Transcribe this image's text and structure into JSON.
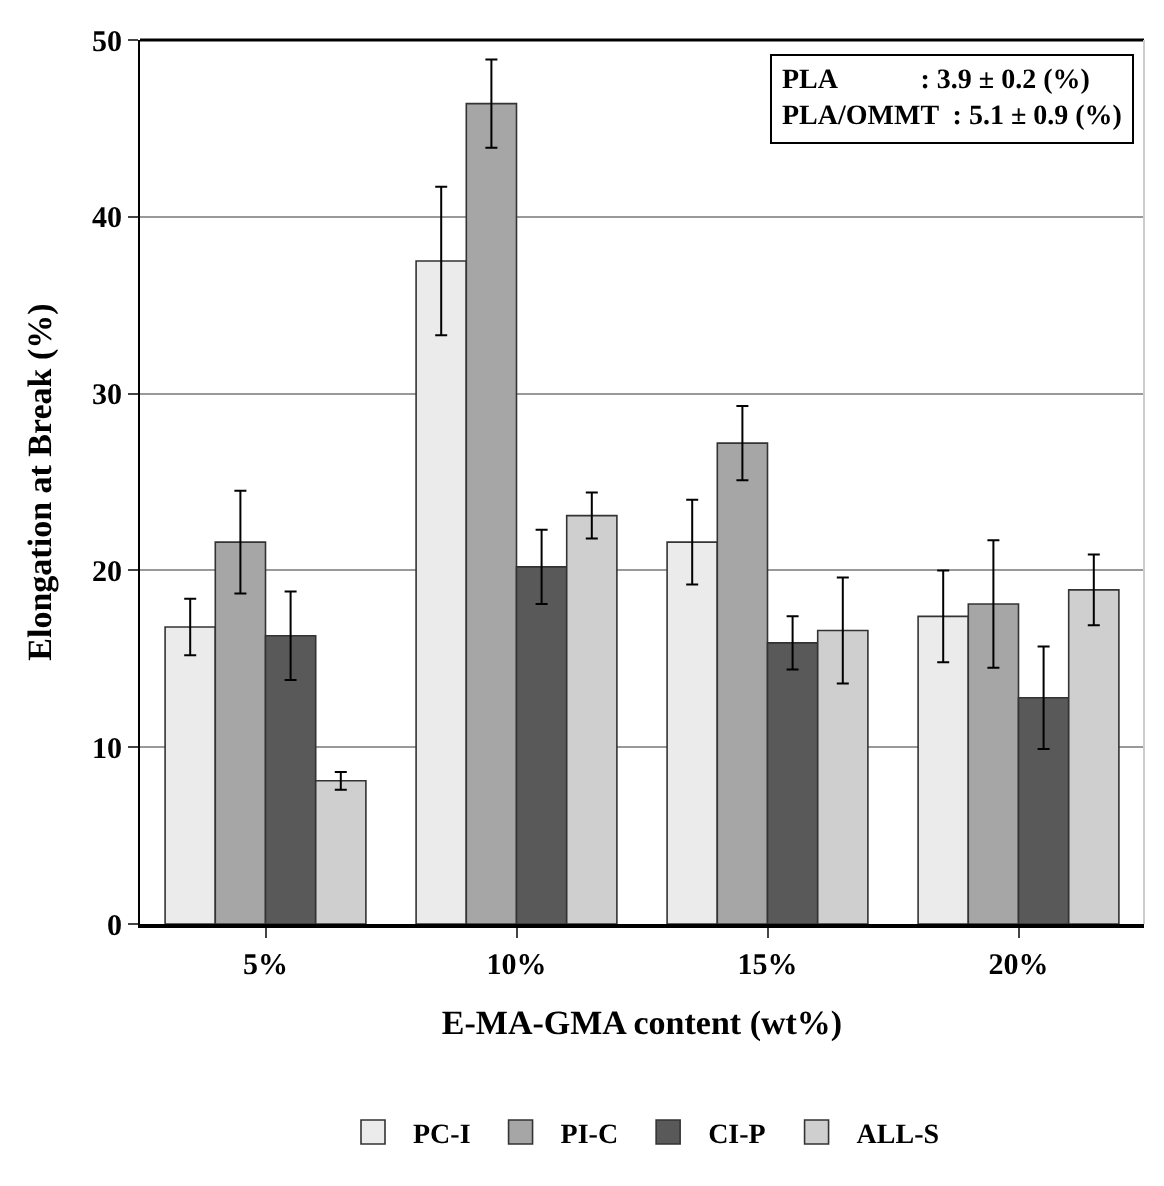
{
  "chart_data": {
    "type": "bar",
    "xlabel": "E-MA-GMA content (wt%)",
    "ylabel": "Elongation at Break (%)",
    "categories": [
      "5%",
      "10%",
      "15%",
      "20%"
    ],
    "series": [
      {
        "name": "PC-I",
        "color": "#ebebeb",
        "values": [
          16.8,
          37.5,
          21.6,
          17.4
        ],
        "errors": [
          1.6,
          4.2,
          2.4,
          2.6
        ]
      },
      {
        "name": "PI-C",
        "color": "#a6a6a6",
        "values": [
          21.6,
          46.4,
          27.2,
          18.1
        ],
        "errors": [
          2.9,
          2.5,
          2.1,
          3.6
        ]
      },
      {
        "name": "CI-P",
        "color": "#595959",
        "values": [
          16.3,
          20.2,
          15.9,
          12.8
        ],
        "errors": [
          2.5,
          2.1,
          1.5,
          2.9
        ]
      },
      {
        "name": "ALL-S",
        "color": "#cfcfcf",
        "values": [
          8.1,
          23.1,
          16.6,
          18.9
        ],
        "errors": [
          0.5,
          1.3,
          3.0,
          2.0
        ]
      }
    ],
    "ylim": [
      0,
      50
    ],
    "yticks": [
      0,
      10,
      20,
      30,
      40,
      50
    ],
    "grid": "y",
    "legend": "bottom",
    "annotations": [
      "PLA            : 3.9 ± 0.2 (%)",
      "PLA/OMMT  : 5.1 ± 0.9 (%)"
    ]
  }
}
